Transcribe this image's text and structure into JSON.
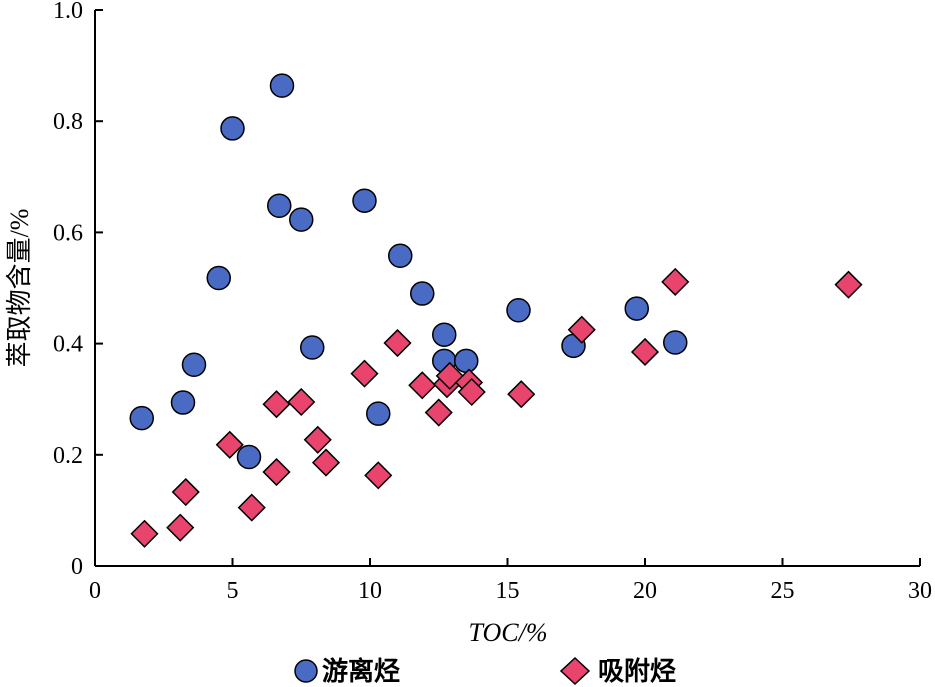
{
  "chart_data": {
    "type": "scatter",
    "title": "",
    "xlabel": "TOC/%",
    "ylabel": "萃取物含量/%",
    "xlim": [
      0,
      30
    ],
    "ylim": [
      0,
      1.0
    ],
    "x_ticks": [
      "0",
      "5",
      "10",
      "15",
      "20",
      "25",
      "30"
    ],
    "y_ticks": [
      "0",
      "0.2",
      "0.4",
      "0.6",
      "0.8",
      "1.0"
    ],
    "grid": false,
    "legend_position": "bottom",
    "series": [
      {
        "name": "游离烃",
        "marker": "circle",
        "color": "#4a6bc4",
        "points": [
          [
            1.7,
            0.266
          ],
          [
            3.2,
            0.294
          ],
          [
            3.6,
            0.362
          ],
          [
            4.5,
            0.518
          ],
          [
            5.0,
            0.787
          ],
          [
            5.6,
            0.196
          ],
          [
            6.7,
            0.648
          ],
          [
            6.8,
            0.864
          ],
          [
            7.5,
            0.623
          ],
          [
            7.9,
            0.393
          ],
          [
            9.8,
            0.657
          ],
          [
            10.3,
            0.274
          ],
          [
            11.1,
            0.558
          ],
          [
            11.9,
            0.49
          ],
          [
            12.7,
            0.416
          ],
          [
            12.7,
            0.369
          ],
          [
            13.5,
            0.369
          ],
          [
            15.4,
            0.46
          ],
          [
            17.4,
            0.396
          ],
          [
            19.7,
            0.463
          ],
          [
            21.1,
            0.402
          ]
        ]
      },
      {
        "name": "吸附烃",
        "marker": "diamond",
        "color": "#e8446e",
        "points": [
          [
            1.8,
            0.058
          ],
          [
            3.1,
            0.069
          ],
          [
            3.3,
            0.133
          ],
          [
            4.9,
            0.218
          ],
          [
            5.7,
            0.105
          ],
          [
            6.6,
            0.169
          ],
          [
            6.6,
            0.291
          ],
          [
            7.5,
            0.295
          ],
          [
            8.1,
            0.227
          ],
          [
            8.4,
            0.186
          ],
          [
            9.8,
            0.346
          ],
          [
            10.3,
            0.163
          ],
          [
            11.0,
            0.401
          ],
          [
            11.9,
            0.325
          ],
          [
            12.5,
            0.276
          ],
          [
            12.8,
            0.327
          ],
          [
            12.9,
            0.342
          ],
          [
            13.6,
            0.33
          ],
          [
            13.7,
            0.313
          ],
          [
            15.5,
            0.309
          ],
          [
            17.7,
            0.425
          ],
          [
            20.0,
            0.385
          ],
          [
            21.1,
            0.511
          ],
          [
            27.4,
            0.506
          ]
        ]
      }
    ]
  }
}
